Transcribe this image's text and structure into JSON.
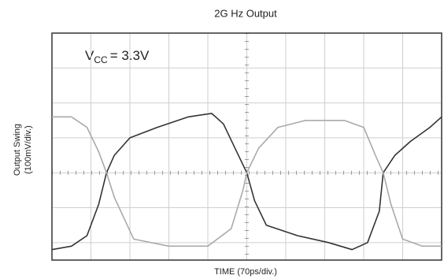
{
  "chart_data": {
    "type": "line",
    "title": "2G Hz Output",
    "x_label": "TIME (70ps/div.)",
    "y_label": [
      "Output Swing",
      "(100mV/div.)"
    ],
    "annotation": {
      "base": "V",
      "sub": "CC",
      "rest": "= 3.3V"
    },
    "xlim": [
      0,
      10
    ],
    "ylim": [
      -2.5,
      4
    ],
    "xticks": [
      0,
      1,
      2,
      3,
      4,
      5,
      6,
      7,
      8,
      9,
      10
    ],
    "yticks": [
      -2,
      -1,
      0,
      1,
      2,
      3
    ],
    "grid": true,
    "series": [
      {
        "color": "#333333",
        "x": [
          0,
          0.5,
          0.9,
          1.2,
          1.4,
          1.6,
          2.0,
          2.7,
          3.5,
          4.1,
          4.4,
          4.7,
          5.0,
          5.2,
          5.5,
          6.3,
          7.1,
          7.7,
          8.1,
          8.4,
          8.5,
          8.8,
          9.2,
          9.7,
          10.0
        ],
        "values": [
          -2.2,
          -2.1,
          -1.8,
          -0.9,
          0,
          0.5,
          1.0,
          1.3,
          1.6,
          1.7,
          1.4,
          0.7,
          0,
          -0.8,
          -1.5,
          -1.8,
          -2.0,
          -2.2,
          -2.0,
          -1.1,
          0,
          0.5,
          0.9,
          1.3,
          1.6
        ]
      },
      {
        "color": "#aaaaaa",
        "x": [
          0,
          0.5,
          0.9,
          1.2,
          1.4,
          1.6,
          2.1,
          3.0,
          4.0,
          4.6,
          4.9,
          5.0,
          5.3,
          5.8,
          6.5,
          7.5,
          8.0,
          8.3,
          8.5,
          8.7,
          9.0,
          9.5,
          10
        ],
        "values": [
          1.6,
          1.6,
          1.3,
          0.6,
          0,
          -0.7,
          -1.9,
          -2.1,
          -2.1,
          -1.6,
          -0.5,
          0,
          0.7,
          1.3,
          1.5,
          1.5,
          1.3,
          0.5,
          0,
          -0.9,
          -1.9,
          -2.1,
          -2.1
        ]
      }
    ]
  }
}
